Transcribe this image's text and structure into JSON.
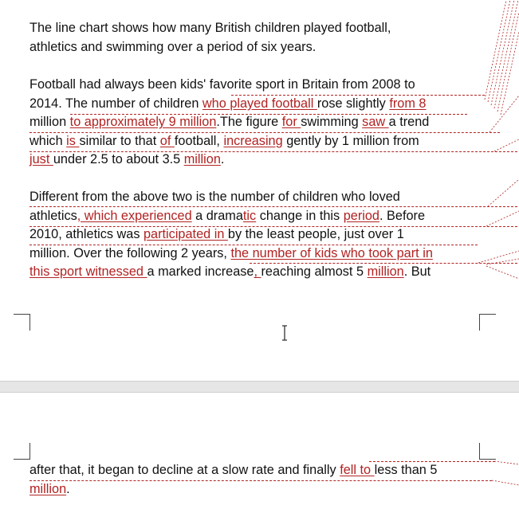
{
  "document": {
    "paragraph1": [
      {
        "segs": [
          {
            "t": "The line chart shows how many British children played football,",
            "ins": false
          }
        ]
      },
      {
        "segs": [
          {
            "t": "athletics and swimming over a period of six years.",
            "ins": false
          }
        ]
      }
    ],
    "paragraph2": [
      {
        "segs": [
          {
            "t": "Football had always been kids' favorite sport in Britain from 2008 to",
            "ins": false
          }
        ]
      },
      {
        "segs": [
          {
            "t": "2014. The number of children ",
            "ins": false
          },
          {
            "t": "who played football ",
            "ins": true
          },
          {
            "t": "rose slightly ",
            "ins": false
          },
          {
            "t": "from 8",
            "ins": true
          }
        ]
      },
      {
        "segs": [
          {
            "t": "million ",
            "ins": false
          },
          {
            "t": "to approximately 9 million",
            "ins": true
          },
          {
            "t": ".The figure ",
            "ins": false
          },
          {
            "t": "for ",
            "ins": true
          },
          {
            "t": "swimming ",
            "ins": false
          },
          {
            "t": "saw ",
            "ins": true
          },
          {
            "t": "a trend",
            "ins": false
          }
        ]
      },
      {
        "segs": [
          {
            "t": "which ",
            "ins": false
          },
          {
            "t": "is ",
            "ins": true
          },
          {
            "t": "similar to that ",
            "ins": false
          },
          {
            "t": "of ",
            "ins": true
          },
          {
            "t": "football, ",
            "ins": false
          },
          {
            "t": "increasing",
            "ins": true
          },
          {
            "t": " gently by 1 million from",
            "ins": false
          }
        ]
      },
      {
        "segs": [
          {
            "t": "just ",
            "ins": true
          },
          {
            "t": "under 2.5 to about 3.5 ",
            "ins": false
          },
          {
            "t": "million",
            "ins": true
          },
          {
            "t": ".",
            "ins": false
          }
        ]
      }
    ],
    "paragraph3": [
      {
        "segs": [
          {
            "t": "Different from the above two is the number of children who loved",
            "ins": false
          }
        ]
      },
      {
        "segs": [
          {
            "t": "athletics",
            "ins": false
          },
          {
            "t": ", which experienced",
            "ins": true
          },
          {
            "t": " a drama",
            "ins": false
          },
          {
            "t": "tic",
            "ins": true
          },
          {
            "t": " change in this ",
            "ins": false
          },
          {
            "t": "period",
            "ins": true
          },
          {
            "t": ". Before",
            "ins": false
          }
        ]
      },
      {
        "segs": [
          {
            "t": "2010, athletics was ",
            "ins": false
          },
          {
            "t": "participated in ",
            "ins": true
          },
          {
            "t": "by the least people, just over 1",
            "ins": false
          }
        ]
      },
      {
        "segs": [
          {
            "t": "million. Over the following 2 years, ",
            "ins": false
          },
          {
            "t": "the number of kids who took part in",
            "ins": true
          }
        ]
      },
      {
        "segs": [
          {
            "t": "this sport witnessed ",
            "ins": true
          },
          {
            "t": "a marked increase",
            "ins": false
          },
          {
            "t": ", ",
            "ins": true
          },
          {
            "t": "reaching almost 5 ",
            "ins": false
          },
          {
            "t": "million",
            "ins": true
          },
          {
            "t": ". But",
            "ins": false
          }
        ]
      }
    ],
    "paragraph4": [
      {
        "segs": [
          {
            "t": "after that, it began to decline at a slow rate and finally ",
            "ins": false
          },
          {
            "t": "fell to ",
            "ins": true
          },
          {
            "t": "less than 5",
            "ins": false
          }
        ]
      },
      {
        "segs": [
          {
            "t": "million",
            "ins": true
          },
          {
            "t": ".",
            "ins": false
          }
        ]
      }
    ]
  },
  "colors": {
    "insertion": "#b22222",
    "text": "#111111",
    "page_gap": "#e6e6e6"
  },
  "icons": {
    "cursor": "text-cursor-icon",
    "corners": "page-corner-mark-icon"
  }
}
